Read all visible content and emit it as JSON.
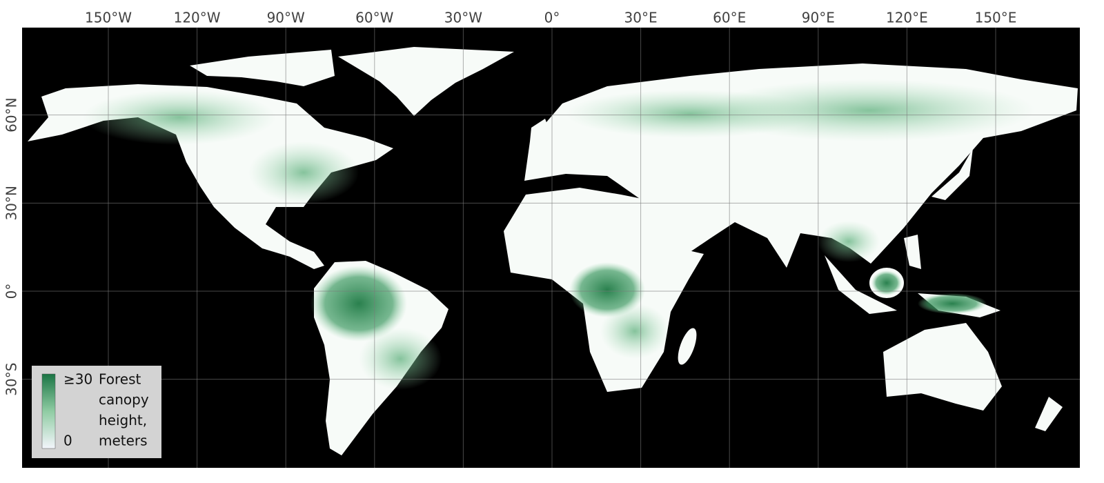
{
  "map": {
    "lon_ticks": [
      {
        "value": -150,
        "label": "150°W"
      },
      {
        "value": -120,
        "label": "120°W"
      },
      {
        "value": -90,
        "label": "90°W"
      },
      {
        "value": -60,
        "label": "60°W"
      },
      {
        "value": -30,
        "label": "30°W"
      },
      {
        "value": 0,
        "label": "0°"
      },
      {
        "value": 30,
        "label": "30°E"
      },
      {
        "value": 60,
        "label": "60°E"
      },
      {
        "value": 90,
        "label": "90°E"
      },
      {
        "value": 120,
        "label": "120°E"
      },
      {
        "value": 150,
        "label": "150°E"
      }
    ],
    "lat_ticks": [
      {
        "value": 60,
        "label": "60°N"
      },
      {
        "value": 30,
        "label": "30°N"
      },
      {
        "value": 0,
        "label": "0°"
      },
      {
        "value": -30,
        "label": "30°S"
      }
    ],
    "legend": {
      "scale": [
        {
          "value": 30,
          "label": "≥30"
        },
        {
          "value": 0,
          "label": "0"
        }
      ],
      "title_lines": [
        "Forest",
        "canopy",
        "height,",
        "meters"
      ]
    }
  }
}
